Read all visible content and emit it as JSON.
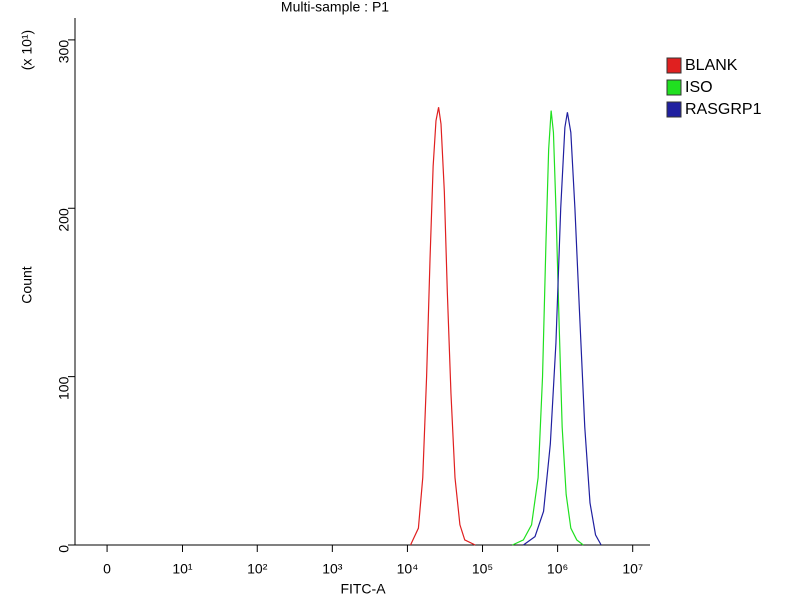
{
  "chart_data": {
    "type": "line",
    "title": "Multi-sample : P1",
    "x_label": "FITC-A",
    "y_label": "Count",
    "y_multiplier": "(x 10¹)",
    "xscale": "asinh",
    "xlim": [
      -2.3,
      17000000
    ],
    "ylim": [
      0,
      313
    ],
    "xticks": [
      0,
      {
        "value": 10,
        "label": "10¹"
      },
      {
        "value": 100,
        "label": "10²"
      },
      {
        "value": 1000,
        "label": "10³"
      },
      {
        "value": 10000,
        "label": "10⁴"
      },
      {
        "value": 100000,
        "label": "10⁵"
      },
      {
        "value": 1000000,
        "label": "10⁶"
      },
      {
        "value": 10000000,
        "label": "10⁷"
      }
    ],
    "yticks": [
      0,
      100,
      200,
      300
    ],
    "series": [
      {
        "name": "BLANK",
        "color": "#e02020",
        "x": [
          11000,
          14000,
          16000,
          18000,
          20000,
          22000,
          24000,
          26000,
          28000,
          31000,
          34000,
          38000,
          43000,
          50000,
          58000,
          80000
        ],
        "values": [
          0,
          10,
          40,
          100,
          170,
          225,
          252,
          260,
          250,
          210,
          150,
          90,
          40,
          12,
          3,
          0
        ]
      },
      {
        "name": "ISO",
        "color": "#20e020",
        "x": [
          250000,
          350000,
          450000,
          550000,
          630000,
          700000,
          760000,
          820000,
          880000,
          950000,
          1050000,
          1150000,
          1300000,
          1500000,
          1800000,
          2200000
        ],
        "values": [
          0,
          3,
          12,
          40,
          100,
          180,
          235,
          258,
          245,
          200,
          130,
          70,
          30,
          10,
          3,
          0
        ]
      },
      {
        "name": "RASGRP1",
        "color": "#2020a0",
        "x": [
          350000,
          500000,
          650000,
          800000,
          950000,
          1100000,
          1250000,
          1350000,
          1500000,
          1700000,
          1950000,
          2300000,
          2700000,
          3200000,
          3800000
        ],
        "values": [
          0,
          5,
          20,
          60,
          120,
          200,
          248,
          257,
          245,
          200,
          140,
          70,
          25,
          6,
          0
        ]
      }
    ]
  }
}
